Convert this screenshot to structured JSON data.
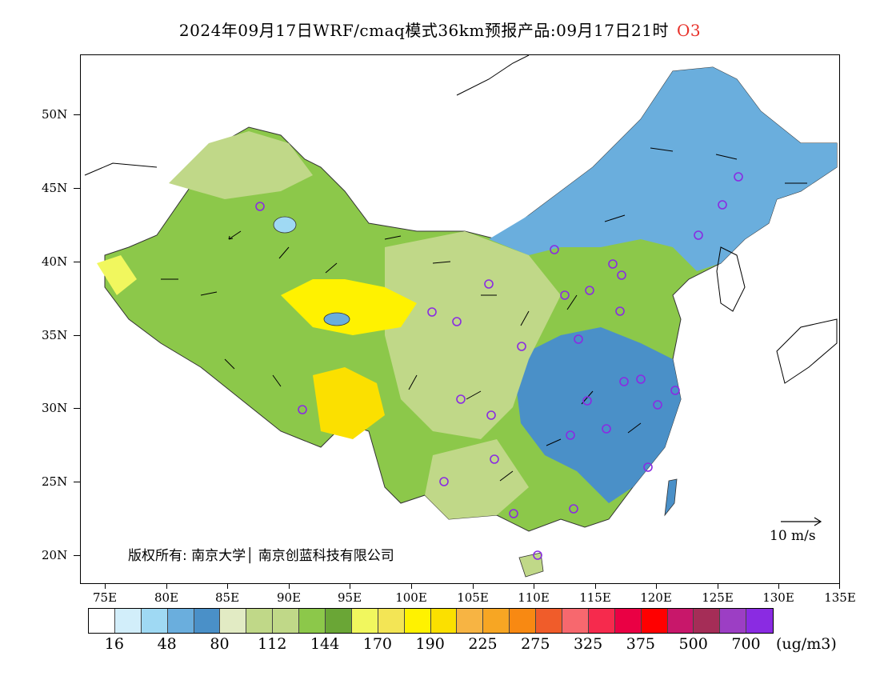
{
  "title": {
    "text": "2024年09月17日WRF/cmaq模式36km预报产品:09月17日21时",
    "species": "O3"
  },
  "map": {
    "lat_labels": [
      "50N",
      "45N",
      "40N",
      "35N",
      "30N",
      "25N",
      "20N"
    ],
    "lon_labels": [
      "75E",
      "80E",
      "85E",
      "90E",
      "95E",
      "100E",
      "105E",
      "110E",
      "115E",
      "120E",
      "125E",
      "130E",
      "135E"
    ],
    "copyright": "版权所有: 南京大学│ 南京创蓝科技有限公司",
    "wind_scale": "10  m/s"
  },
  "legend": {
    "colors": [
      "#ffffff",
      "#d2eefa",
      "#9fd9f3",
      "#6aaedd",
      "#4a90c8",
      "#e2ebc4",
      "#c0d888",
      "#c0d888",
      "#8cc84a",
      "#6aa636",
      "#f1f75e",
      "#f3e555",
      "#fff200",
      "#fbe000",
      "#f7b443",
      "#f7a623",
      "#f88912",
      "#f05c2a",
      "#f7686e",
      "#f62a4d",
      "#ea0044",
      "#ff0000",
      "#c8176a",
      "#a52d57",
      "#9c3ec4",
      "#8a2be2"
    ],
    "labels": [
      "16",
      "48",
      "80",
      "112",
      "144",
      "170",
      "190",
      "225",
      "275",
      "325",
      "375",
      "500",
      "700"
    ],
    "unit": "(ug/m3)"
  }
}
